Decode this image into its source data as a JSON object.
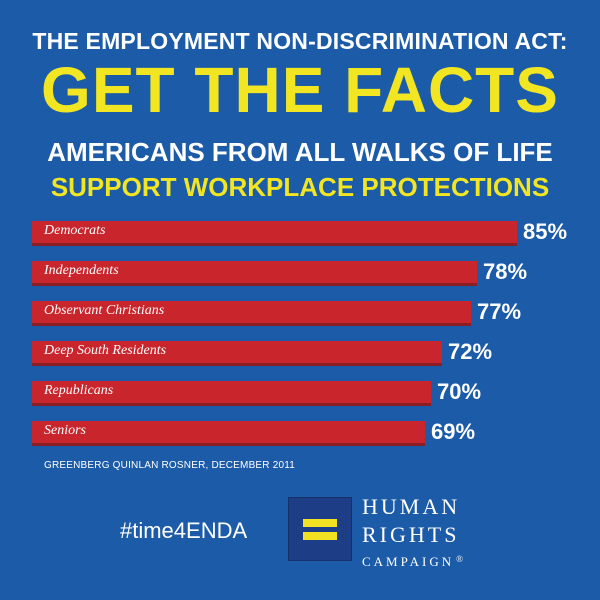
{
  "header": {
    "line1": "THE EMPLOYMENT NON-DISCRIMINATION ACT:",
    "line2": "GET THE FACTS",
    "line3": "AMERICANS FROM ALL WALKS OF LIFE",
    "line4": "SUPPORT WORKPLACE PROTECTIONS"
  },
  "chart_data": {
    "type": "bar",
    "orientation": "horizontal",
    "categories": [
      "Democrats",
      "Independents",
      "Observant Christians",
      "Deep South Residents",
      "Republicans",
      "Seniors"
    ],
    "values": [
      85,
      78,
      77,
      72,
      70,
      69
    ],
    "value_labels": [
      "85%",
      "78%",
      "77%",
      "72%",
      "70%",
      "69%"
    ],
    "unit": "%",
    "xlim": [
      0,
      100
    ],
    "bar_color": "#c8252c",
    "grid": false,
    "legend": "none"
  },
  "source": "GREENBERG QUINLAN ROSNER, DECEMBER 2011",
  "footer": {
    "hashtag": "#time4ENDA",
    "org_line1": "HUMAN",
    "org_line2": "RIGHTS",
    "org_line3": "CAMPAIGN",
    "org_mark": "®",
    "logo_icon": "equal-sign-icon"
  },
  "colors": {
    "background": "#1c5ba8",
    "accent_yellow": "#f2e522",
    "bar_red": "#c8252c",
    "logo_blue": "#1d3e86"
  }
}
